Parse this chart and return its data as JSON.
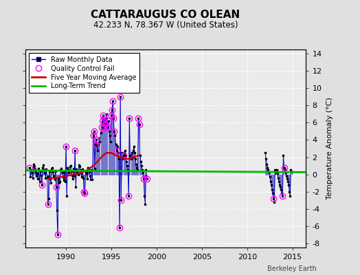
{
  "title": "CATTARAUGUS CO OLEAN",
  "subtitle": "42.233 N, 78.367 W (United States)",
  "ylabel": "Temperature Anomaly (°C)",
  "attribution": "Berkeley Earth",
  "xlim": [
    1985.5,
    2016.5
  ],
  "ylim": [
    -8.5,
    14.5
  ],
  "yticks": [
    -8,
    -6,
    -4,
    -2,
    0,
    2,
    4,
    6,
    8,
    10,
    12,
    14
  ],
  "xticks": [
    1990,
    1995,
    2000,
    2005,
    2010,
    2015
  ],
  "bg_color": "#e0e0e0",
  "plot_bg_color": "#ebebeb",
  "grid_color": "#ffffff",
  "raw_line_color": "#6666cc",
  "raw_dot_color": "#000000",
  "ma_color": "#cc0000",
  "trend_color": "#00bb00",
  "qc_color": "#ff00ff",
  "segment1": [
    [
      1986.0,
      0.8
    ],
    [
      1986.083,
      -0.3
    ],
    [
      1986.167,
      0.5
    ],
    [
      1986.25,
      0.2
    ],
    [
      1986.333,
      -0.4
    ],
    [
      1986.417,
      1.2
    ],
    [
      1986.5,
      0.9
    ],
    [
      1986.583,
      0.6
    ],
    [
      1986.667,
      0.3
    ],
    [
      1986.75,
      -0.2
    ],
    [
      1986.833,
      0.1
    ],
    [
      1986.917,
      -0.5
    ],
    [
      1987.0,
      0.7
    ],
    [
      1987.083,
      -0.8
    ],
    [
      1987.167,
      0.4
    ],
    [
      1987.25,
      -0.1
    ],
    [
      1987.333,
      -1.2
    ],
    [
      1987.417,
      0.8
    ],
    [
      1987.5,
      1.1
    ],
    [
      1987.583,
      0.5
    ],
    [
      1987.667,
      0.2
    ],
    [
      1987.75,
      -0.4
    ],
    [
      1987.833,
      0.6
    ],
    [
      1987.917,
      -0.3
    ],
    [
      1988.0,
      -3.5
    ],
    [
      1988.083,
      -2.8
    ],
    [
      1988.167,
      0.3
    ],
    [
      1988.25,
      -0.5
    ],
    [
      1988.333,
      -1.0
    ],
    [
      1988.417,
      0.6
    ],
    [
      1988.5,
      0.8
    ],
    [
      1988.583,
      0.3
    ],
    [
      1988.667,
      -0.2
    ],
    [
      1988.75,
      -0.6
    ],
    [
      1988.833,
      0.4
    ],
    [
      1988.917,
      -1.5
    ],
    [
      1989.0,
      -4.2
    ],
    [
      1989.083,
      -7.0
    ],
    [
      1989.167,
      -0.5
    ],
    [
      1989.25,
      -1.0
    ],
    [
      1989.333,
      -0.8
    ],
    [
      1989.417,
      0.5
    ],
    [
      1989.5,
      0.7
    ],
    [
      1989.583,
      0.2
    ],
    [
      1989.667,
      -0.3
    ],
    [
      1989.75,
      -0.7
    ],
    [
      1989.833,
      0.3
    ],
    [
      1989.917,
      -0.8
    ],
    [
      1990.0,
      3.2
    ],
    [
      1990.083,
      -2.5
    ],
    [
      1990.167,
      0.8
    ],
    [
      1990.25,
      0.5
    ],
    [
      1990.333,
      0.2
    ],
    [
      1990.417,
      0.9
    ],
    [
      1990.5,
      1.0
    ],
    [
      1990.583,
      0.4
    ],
    [
      1990.667,
      -0.1
    ],
    [
      1990.75,
      -0.5
    ],
    [
      1990.833,
      0.7
    ],
    [
      1990.917,
      -0.2
    ],
    [
      1991.0,
      2.8
    ],
    [
      1991.083,
      -1.5
    ],
    [
      1991.167,
      0.6
    ],
    [
      1991.25,
      0.3
    ],
    [
      1991.333,
      0.0
    ],
    [
      1991.417,
      1.1
    ],
    [
      1991.5,
      0.9
    ],
    [
      1991.583,
      0.5
    ],
    [
      1991.667,
      0.2
    ],
    [
      1991.75,
      -0.3
    ],
    [
      1991.833,
      0.6
    ],
    [
      1991.917,
      -0.4
    ],
    [
      1992.0,
      -2.0
    ],
    [
      1992.083,
      -2.2
    ],
    [
      1992.167,
      0.4
    ],
    [
      1992.25,
      0.1
    ],
    [
      1992.333,
      -0.5
    ],
    [
      1992.417,
      0.8
    ],
    [
      1992.5,
      0.7
    ],
    [
      1992.583,
      0.3
    ],
    [
      1992.667,
      -0.2
    ],
    [
      1992.75,
      -0.6
    ],
    [
      1992.833,
      0.5
    ],
    [
      1992.917,
      -0.6
    ],
    [
      1993.0,
      4.5
    ],
    [
      1993.083,
      5.0
    ],
    [
      1993.167,
      0.7
    ],
    [
      1993.25,
      3.5
    ],
    [
      1993.333,
      4.0
    ],
    [
      1993.417,
      3.2
    ],
    [
      1993.5,
      2.8
    ],
    [
      1993.583,
      3.5
    ],
    [
      1993.667,
      4.2
    ],
    [
      1993.75,
      3.8
    ],
    [
      1993.833,
      4.8
    ],
    [
      1993.917,
      5.5
    ],
    [
      1994.0,
      6.2
    ],
    [
      1994.083,
      6.8
    ],
    [
      1994.167,
      5.5
    ],
    [
      1994.25,
      6.5
    ],
    [
      1994.333,
      5.8
    ],
    [
      1994.417,
      6.0
    ],
    [
      1994.5,
      7.0
    ],
    [
      1994.583,
      5.5
    ],
    [
      1994.667,
      6.2
    ],
    [
      1994.75,
      5.0
    ],
    [
      1994.833,
      4.5
    ],
    [
      1994.917,
      3.8
    ],
    [
      1995.0,
      6.8
    ],
    [
      1995.083,
      7.5
    ],
    [
      1995.167,
      8.5
    ],
    [
      1995.25,
      6.5
    ],
    [
      1995.333,
      5.0
    ],
    [
      1995.417,
      4.5
    ],
    [
      1995.5,
      3.5
    ],
    [
      1995.583,
      2.8
    ],
    [
      1995.667,
      3.2
    ],
    [
      1995.75,
      2.5
    ],
    [
      1995.833,
      1.8
    ],
    [
      1995.917,
      -6.2
    ],
    [
      1996.0,
      9.0
    ],
    [
      1996.083,
      -3.0
    ],
    [
      1996.167,
      2.5
    ],
    [
      1996.25,
      1.8
    ],
    [
      1996.333,
      2.2
    ],
    [
      1996.417,
      2.5
    ],
    [
      1996.5,
      2.8
    ],
    [
      1996.583,
      2.2
    ],
    [
      1996.667,
      1.5
    ],
    [
      1996.75,
      1.0
    ],
    [
      1996.833,
      0.5
    ],
    [
      1996.917,
      -2.5
    ],
    [
      1997.0,
      6.5
    ],
    [
      1997.083,
      2.2
    ],
    [
      1997.167,
      1.8
    ],
    [
      1997.25,
      2.5
    ],
    [
      1997.333,
      2.0
    ],
    [
      1997.417,
      2.8
    ],
    [
      1997.5,
      3.2
    ],
    [
      1997.583,
      2.5
    ],
    [
      1997.667,
      1.8
    ],
    [
      1997.75,
      1.2
    ],
    [
      1997.833,
      0.8
    ],
    [
      1997.917,
      0.5
    ],
    [
      1998.0,
      6.5
    ],
    [
      1998.083,
      5.8
    ],
    [
      1998.167,
      2.2
    ],
    [
      1998.25,
      1.5
    ],
    [
      1998.333,
      1.0
    ],
    [
      1998.417,
      0.5
    ],
    [
      1998.5,
      0.2
    ],
    [
      1998.583,
      -0.5
    ],
    [
      1998.667,
      -2.5
    ],
    [
      1998.75,
      -3.5
    ],
    [
      1998.833,
      0.5
    ],
    [
      1998.917,
      -0.5
    ]
  ],
  "segment2": [
    [
      2012.0,
      2.5
    ],
    [
      2012.083,
      1.8
    ],
    [
      2012.167,
      1.2
    ],
    [
      2012.25,
      0.8
    ],
    [
      2012.333,
      0.5
    ],
    [
      2012.417,
      0.2
    ],
    [
      2012.5,
      -0.3
    ],
    [
      2012.583,
      -0.8
    ],
    [
      2012.667,
      -1.2
    ],
    [
      2012.75,
      -1.8
    ],
    [
      2012.833,
      -2.2
    ],
    [
      2012.917,
      -2.8
    ],
    [
      2013.0,
      -3.2
    ],
    [
      2013.083,
      0.5
    ],
    [
      2013.167,
      0.2
    ],
    [
      2013.25,
      0.5
    ],
    [
      2013.333,
      0.1
    ],
    [
      2013.417,
      -0.4
    ],
    [
      2013.5,
      -0.8
    ],
    [
      2013.583,
      -1.2
    ],
    [
      2013.667,
      -1.5
    ],
    [
      2013.75,
      -1.8
    ],
    [
      2013.833,
      -2.2
    ],
    [
      2013.917,
      -2.5
    ],
    [
      2014.0,
      2.2
    ],
    [
      2014.083,
      0.8
    ],
    [
      2014.167,
      0.5
    ],
    [
      2014.25,
      0.2
    ],
    [
      2014.333,
      -0.2
    ],
    [
      2014.417,
      -0.5
    ],
    [
      2014.5,
      -0.8
    ],
    [
      2014.583,
      -1.2
    ],
    [
      2014.667,
      -2.0
    ],
    [
      2014.75,
      -2.5
    ],
    [
      2014.833,
      0.5
    ],
    [
      2014.917,
      0.3
    ]
  ],
  "qc_fail_points": [
    [
      1986.0,
      0.8
    ],
    [
      1987.333,
      -1.2
    ],
    [
      1988.0,
      -3.5
    ],
    [
      1988.917,
      -1.5
    ],
    [
      1989.083,
      -7.0
    ],
    [
      1990.0,
      3.2
    ],
    [
      1991.0,
      2.8
    ],
    [
      1992.0,
      -2.0
    ],
    [
      1992.083,
      -2.2
    ],
    [
      1993.0,
      4.5
    ],
    [
      1993.083,
      5.0
    ],
    [
      1993.25,
      3.5
    ],
    [
      1993.333,
      4.0
    ],
    [
      1993.917,
      5.5
    ],
    [
      1994.0,
      6.2
    ],
    [
      1994.083,
      6.8
    ],
    [
      1994.167,
      5.5
    ],
    [
      1994.25,
      6.5
    ],
    [
      1994.333,
      5.8
    ],
    [
      1994.583,
      5.5
    ],
    [
      1994.667,
      6.2
    ],
    [
      1995.0,
      6.8
    ],
    [
      1995.083,
      7.5
    ],
    [
      1995.167,
      8.5
    ],
    [
      1995.25,
      6.5
    ],
    [
      1995.333,
      5.0
    ],
    [
      1995.583,
      2.8
    ],
    [
      1995.917,
      -6.2
    ],
    [
      1996.0,
      9.0
    ],
    [
      1996.083,
      -3.0
    ],
    [
      1996.333,
      2.2
    ],
    [
      1996.917,
      -2.5
    ],
    [
      1997.0,
      6.5
    ],
    [
      1998.0,
      6.5
    ],
    [
      1998.083,
      5.8
    ],
    [
      1998.583,
      -0.5
    ],
    [
      1998.917,
      -0.5
    ],
    [
      2012.917,
      -2.8
    ],
    [
      2013.917,
      -2.5
    ],
    [
      2014.083,
      0.8
    ]
  ],
  "moving_avg": [
    [
      1988.0,
      -0.5
    ],
    [
      1988.5,
      -0.45
    ],
    [
      1989.0,
      -0.4
    ],
    [
      1989.5,
      -0.3
    ],
    [
      1990.0,
      -0.2
    ],
    [
      1990.5,
      -0.1
    ],
    [
      1991.0,
      0.0
    ],
    [
      1991.5,
      0.15
    ],
    [
      1992.0,
      0.3
    ],
    [
      1992.5,
      0.6
    ],
    [
      1993.0,
      1.0
    ],
    [
      1993.5,
      1.5
    ],
    [
      1994.0,
      2.1
    ],
    [
      1994.5,
      2.5
    ],
    [
      1995.0,
      2.5
    ],
    [
      1995.5,
      2.2
    ],
    [
      1996.0,
      2.0
    ],
    [
      1996.5,
      1.8
    ],
    [
      1997.0,
      1.8
    ],
    [
      1997.5,
      2.0
    ],
    [
      1998.0,
      2.2
    ]
  ],
  "trend_x": [
    1985.5,
    2016.5
  ],
  "trend_y": [
    0.45,
    0.25
  ]
}
